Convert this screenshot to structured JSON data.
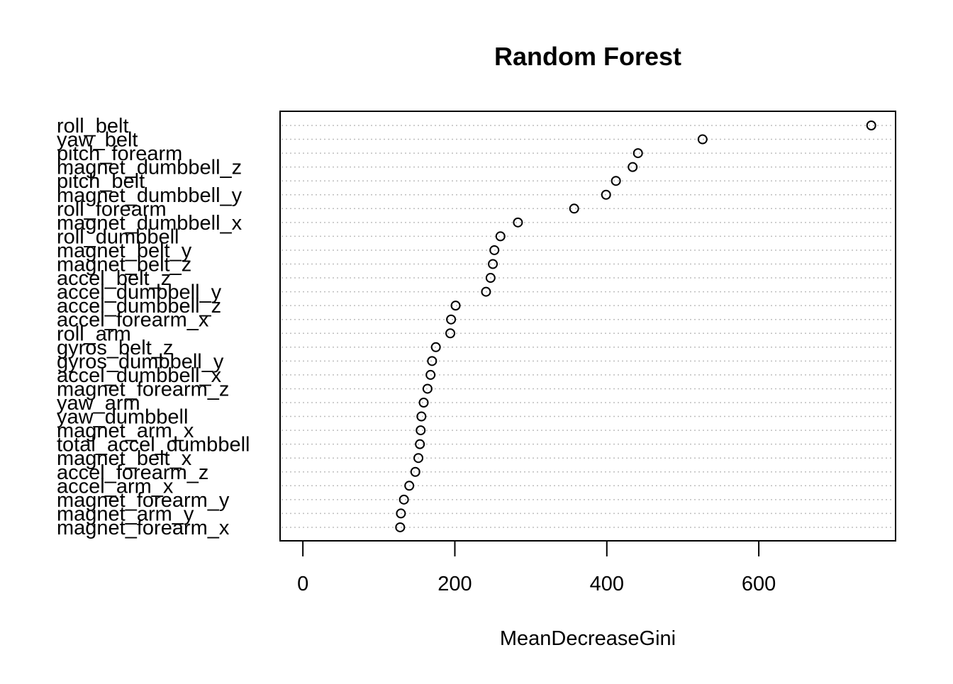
{
  "chart_data": {
    "type": "scatter",
    "title": "Random Forest",
    "xlabel": "MeanDecreaseGini",
    "ylabel": "",
    "xlim": [
      -30,
      780
    ],
    "xticks": [
      0,
      200,
      400,
      600
    ],
    "grid": "dotted horizontal lines per category",
    "legend": "none",
    "categories": [
      "roll_belt",
      "yaw_belt",
      "pitch_forearm",
      "magnet_dumbbell_z",
      "pitch_belt",
      "magnet_dumbbell_y",
      "roll_forearm",
      "magnet_dumbbell_x",
      "roll_dumbbell",
      "magnet_belt_y",
      "magnet_belt_z",
      "accel_belt_z",
      "accel_dumbbell_y",
      "accel_dumbbell_z",
      "accel_forearm_x",
      "roll_arm",
      "gyros_belt_z",
      "gyros_dumbbell_y",
      "accel_dumbbell_x",
      "magnet_forearm_z",
      "yaw_arm",
      "yaw_dumbbell",
      "magnet_arm_x",
      "total_accel_dumbbell",
      "magnet_belt_x",
      "accel_forearm_z",
      "accel_arm_x",
      "magnet_forearm_y",
      "magnet_arm_y",
      "magnet_forearm_x"
    ],
    "values": [
      748,
      526,
      441,
      434,
      412,
      399,
      357,
      283,
      260,
      252,
      250,
      247,
      241,
      201,
      195,
      194,
      175,
      170,
      168,
      164,
      159,
      156,
      155,
      154,
      152,
      148,
      140,
      133,
      129,
      128
    ],
    "colors": {
      "marker": "#000000",
      "grid": "#bebebe",
      "frame": "#000000"
    }
  }
}
